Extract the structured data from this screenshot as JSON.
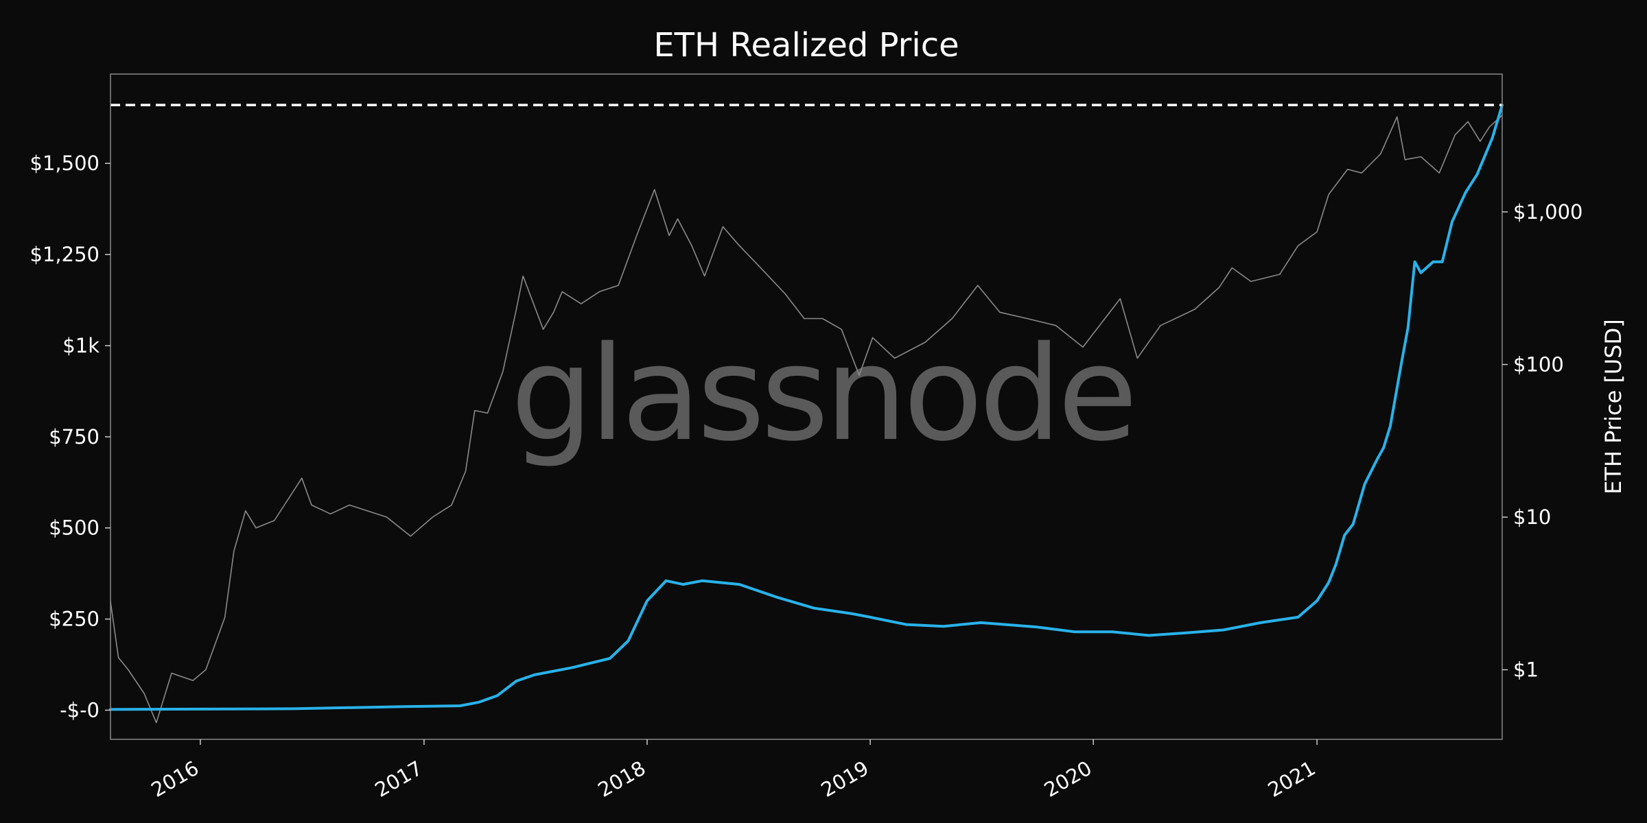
{
  "chart_data": {
    "type": "line",
    "title": "ETH Realized Price",
    "watermark": "glassnode",
    "y_left": {
      "ticks": [
        {
          "value": 0,
          "label": "-$-0"
        },
        {
          "value": 250,
          "label": "$250"
        },
        {
          "value": 500,
          "label": "$500"
        },
        {
          "value": 750,
          "label": "$750"
        },
        {
          "value": 1000,
          "label": "$1k"
        },
        {
          "value": 1250,
          "label": "$1,250"
        },
        {
          "value": 1500,
          "label": "$1,500"
        }
      ],
      "lim": [
        -80,
        1745
      ]
    },
    "y_right": {
      "label": "ETH Price [USD]",
      "scale": "log",
      "ticks": [
        {
          "value": 1,
          "label": "$1"
        },
        {
          "value": 10,
          "label": "$10"
        },
        {
          "value": 100,
          "label": "$100"
        },
        {
          "value": 1000,
          "label": "$1,000"
        }
      ],
      "lim": [
        0.35,
        8000
      ]
    },
    "x_axis": {
      "lim": [
        "2015-08-07",
        "2021-10-31"
      ],
      "ticks": [
        {
          "date": "2016-01-01",
          "label": "2016"
        },
        {
          "date": "2017-01-01",
          "label": "2017"
        },
        {
          "date": "2018-01-01",
          "label": "2018"
        },
        {
          "date": "2019-01-01",
          "label": "2019"
        },
        {
          "date": "2020-01-01",
          "label": "2020"
        },
        {
          "date": "2021-01-01",
          "label": "2021"
        }
      ]
    },
    "ath_line": {
      "value": 1660,
      "style": "dashed",
      "color": "#ffffff"
    },
    "series": [
      {
        "axis": "left",
        "color": "#29b2ea",
        "points": [
          [
            "2015-08-07",
            2
          ],
          [
            "2016-06-01",
            4
          ],
          [
            "2016-12-01",
            10
          ],
          [
            "2017-03-01",
            12
          ],
          [
            "2017-04-01",
            22
          ],
          [
            "2017-05-01",
            40
          ],
          [
            "2017-06-01",
            80
          ],
          [
            "2017-07-01",
            97
          ],
          [
            "2017-09-01",
            117
          ],
          [
            "2017-11-01",
            142
          ],
          [
            "2017-12-01",
            190
          ],
          [
            "2018-01-01",
            300
          ],
          [
            "2018-02-01",
            355
          ],
          [
            "2018-03-01",
            345
          ],
          [
            "2018-04-01",
            355
          ],
          [
            "2018-06-01",
            345
          ],
          [
            "2018-08-01",
            310
          ],
          [
            "2018-10-01",
            280
          ],
          [
            "2018-12-01",
            265
          ],
          [
            "2019-01-01",
            255
          ],
          [
            "2019-03-01",
            235
          ],
          [
            "2019-05-01",
            230
          ],
          [
            "2019-07-01",
            240
          ],
          [
            "2019-10-01",
            228
          ],
          [
            "2019-12-01",
            215
          ],
          [
            "2020-02-01",
            215
          ],
          [
            "2020-04-01",
            205
          ],
          [
            "2020-06-01",
            212
          ],
          [
            "2020-08-01",
            220
          ],
          [
            "2020-10-01",
            240
          ],
          [
            "2020-12-01",
            255
          ],
          [
            "2021-01-01",
            300
          ],
          [
            "2021-01-20",
            350
          ],
          [
            "2021-02-01",
            400
          ],
          [
            "2021-02-15",
            480
          ],
          [
            "2021-03-01",
            510
          ],
          [
            "2021-03-20",
            620
          ],
          [
            "2021-04-10",
            690
          ],
          [
            "2021-04-20",
            720
          ],
          [
            "2021-05-01",
            780
          ],
          [
            "2021-05-20",
            960
          ],
          [
            "2021-05-30",
            1050
          ],
          [
            "2021-06-10",
            1230
          ],
          [
            "2021-06-20",
            1200
          ],
          [
            "2021-07-10",
            1230
          ],
          [
            "2021-07-25",
            1230
          ],
          [
            "2021-08-10",
            1340
          ],
          [
            "2021-09-01",
            1420
          ],
          [
            "2021-09-20",
            1470
          ],
          [
            "2021-10-15",
            1570
          ],
          [
            "2021-10-31",
            1660
          ]
        ]
      },
      {
        "axis": "right",
        "color": "#8a8a8a",
        "points": [
          [
            "2015-08-07",
            2.8
          ],
          [
            "2015-08-20",
            1.2
          ],
          [
            "2015-09-05",
            1.0
          ],
          [
            "2015-10-01",
            0.7
          ],
          [
            "2015-10-21",
            0.45
          ],
          [
            "2015-11-15",
            0.95
          ],
          [
            "2015-12-20",
            0.85
          ],
          [
            "2016-01-10",
            1.0
          ],
          [
            "2016-02-10",
            2.2
          ],
          [
            "2016-02-25",
            6.0
          ],
          [
            "2016-03-15",
            11.0
          ],
          [
            "2016-04-01",
            8.5
          ],
          [
            "2016-05-01",
            9.5
          ],
          [
            "2016-06-15",
            18.0
          ],
          [
            "2016-07-01",
            12.0
          ],
          [
            "2016-08-01",
            10.5
          ],
          [
            "2016-09-01",
            12.0
          ],
          [
            "2016-11-01",
            10.0
          ],
          [
            "2016-12-10",
            7.5
          ],
          [
            "2017-01-15",
            10.0
          ],
          [
            "2017-02-15",
            12.0
          ],
          [
            "2017-03-10",
            20.0
          ],
          [
            "2017-03-25",
            50.0
          ],
          [
            "2017-04-15",
            48.0
          ],
          [
            "2017-05-10",
            90.0
          ],
          [
            "2017-06-01",
            230.0
          ],
          [
            "2017-06-12",
            380.0
          ],
          [
            "2017-07-15",
            170.0
          ],
          [
            "2017-08-01",
            220.0
          ],
          [
            "2017-08-15",
            300.0
          ],
          [
            "2017-09-15",
            250.0
          ],
          [
            "2017-10-15",
            300.0
          ],
          [
            "2017-11-15",
            330.0
          ],
          [
            "2017-12-15",
            700.0
          ],
          [
            "2018-01-13",
            1400.0
          ],
          [
            "2018-02-06",
            700.0
          ],
          [
            "2018-02-20",
            900.0
          ],
          [
            "2018-03-15",
            600.0
          ],
          [
            "2018-04-05",
            380.0
          ],
          [
            "2018-05-05",
            800.0
          ],
          [
            "2018-06-01",
            600.0
          ],
          [
            "2018-07-01",
            450.0
          ],
          [
            "2018-08-15",
            290.0
          ],
          [
            "2018-09-15",
            200.0
          ],
          [
            "2018-10-15",
            200.0
          ],
          [
            "2018-11-15",
            170.0
          ],
          [
            "2018-12-14",
            85.0
          ],
          [
            "2019-01-05",
            150.0
          ],
          [
            "2019-02-10",
            110.0
          ],
          [
            "2019-04-01",
            140.0
          ],
          [
            "2019-05-15",
            200.0
          ],
          [
            "2019-06-26",
            330.0
          ],
          [
            "2019-08-01",
            220.0
          ],
          [
            "2019-09-15",
            200.0
          ],
          [
            "2019-11-01",
            180.0
          ],
          [
            "2019-12-15",
            130.0
          ],
          [
            "2020-02-14",
            270.0
          ],
          [
            "2020-03-13",
            110.0
          ],
          [
            "2020-04-20",
            180.0
          ],
          [
            "2020-06-15",
            230.0
          ],
          [
            "2020-07-25",
            320.0
          ],
          [
            "2020-08-15",
            430.0
          ],
          [
            "2020-09-15",
            350.0
          ],
          [
            "2020-11-01",
            390.0
          ],
          [
            "2020-12-01",
            600.0
          ],
          [
            "2021-01-01",
            740.0
          ],
          [
            "2021-01-20",
            1300.0
          ],
          [
            "2021-02-20",
            1900.0
          ],
          [
            "2021-03-15",
            1800.0
          ],
          [
            "2021-04-15",
            2400.0
          ],
          [
            "2021-05-12",
            4200.0
          ],
          [
            "2021-05-25",
            2200.0
          ],
          [
            "2021-06-20",
            2300.0
          ],
          [
            "2021-07-20",
            1800.0
          ],
          [
            "2021-08-15",
            3200.0
          ],
          [
            "2021-09-05",
            3900.0
          ],
          [
            "2021-09-25",
            2900.0
          ],
          [
            "2021-10-10",
            3600.0
          ],
          [
            "2021-10-31",
            4300.0
          ]
        ]
      }
    ]
  }
}
